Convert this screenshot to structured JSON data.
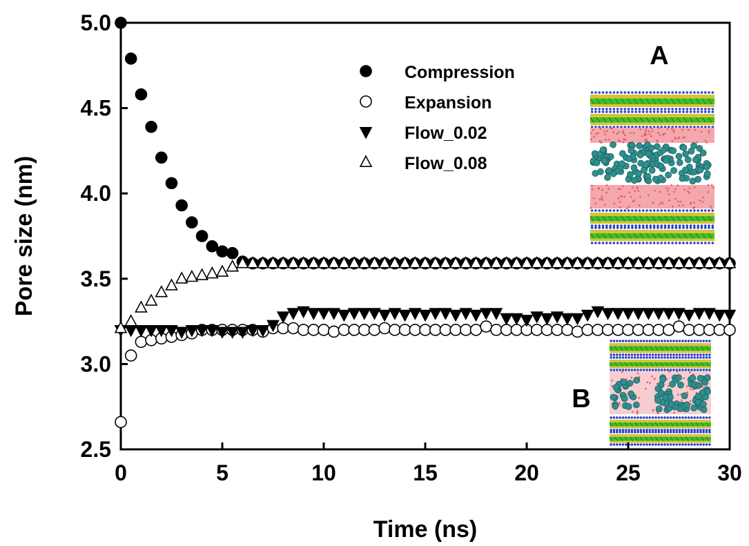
{
  "chart_data": {
    "type": "scatter",
    "xlabel": "Time (ns)",
    "ylabel": "Pore size (nm)",
    "xlim": [
      0,
      30
    ],
    "ylim": [
      2.5,
      5.0
    ],
    "xticks": [
      "0",
      "5",
      "10",
      "15",
      "20",
      "25",
      "30"
    ],
    "yticks": [
      "2.5",
      "3.0",
      "3.5",
      "4.0",
      "4.5",
      "5.0"
    ],
    "grid": false,
    "legend_position": "top-center",
    "annotations": [
      "A",
      "B"
    ],
    "series": [
      {
        "name": "Compression",
        "marker": "filled-circle",
        "x": [
          0,
          0.5,
          1,
          1.5,
          2,
          2.5,
          3,
          3.5,
          4,
          4.5,
          5,
          5.5,
          6,
          6.5,
          7,
          7.5,
          8,
          8.5,
          9,
          9.5,
          10,
          10.5,
          11,
          11.5,
          12,
          12.5,
          13,
          13.5,
          14,
          14.5,
          15,
          15.5,
          16,
          16.5,
          17,
          17.5,
          18,
          18.5,
          19,
          19.5,
          20,
          20.5,
          21,
          21.5,
          22,
          22.5,
          23,
          23.5,
          24,
          24.5,
          25,
          25.5,
          26,
          26.5,
          27,
          27.5,
          28,
          28.5,
          29,
          29.5,
          30
        ],
        "y": [
          5.0,
          4.79,
          4.58,
          4.39,
          4.21,
          4.06,
          3.93,
          3.83,
          3.75,
          3.69,
          3.66,
          3.65,
          3.6,
          3.59,
          3.59,
          3.59,
          3.59,
          3.59,
          3.59,
          3.59,
          3.59,
          3.59,
          3.59,
          3.59,
          3.59,
          3.59,
          3.59,
          3.59,
          3.59,
          3.59,
          3.59,
          3.59,
          3.59,
          3.59,
          3.59,
          3.59,
          3.59,
          3.59,
          3.59,
          3.59,
          3.59,
          3.59,
          3.59,
          3.59,
          3.59,
          3.59,
          3.59,
          3.59,
          3.59,
          3.59,
          3.59,
          3.59,
          3.59,
          3.59,
          3.59,
          3.59,
          3.59,
          3.59,
          3.59,
          3.59,
          3.59
        ]
      },
      {
        "name": "Expansion",
        "marker": "open-circle",
        "x": [
          0,
          0.5,
          1,
          1.5,
          2,
          2.5,
          3,
          3.5,
          4,
          4.5,
          5,
          5.5,
          6,
          6.5,
          7,
          7.5,
          8,
          8.5,
          9,
          9.5,
          10,
          10.5,
          11,
          11.5,
          12,
          12.5,
          13,
          13.5,
          14,
          14.5,
          15,
          15.5,
          16,
          16.5,
          17,
          17.5,
          18,
          18.5,
          19,
          19.5,
          20,
          20.5,
          21,
          21.5,
          22,
          22.5,
          23,
          23.5,
          24,
          24.5,
          25,
          25.5,
          26,
          26.5,
          27,
          27.5,
          28,
          28.5,
          29,
          29.5,
          30
        ],
        "y": [
          2.66,
          3.05,
          3.13,
          3.14,
          3.15,
          3.16,
          3.17,
          3.18,
          3.2,
          3.2,
          3.2,
          3.2,
          3.2,
          3.2,
          3.19,
          3.21,
          3.21,
          3.21,
          3.2,
          3.2,
          3.2,
          3.19,
          3.2,
          3.2,
          3.2,
          3.2,
          3.21,
          3.2,
          3.2,
          3.2,
          3.2,
          3.2,
          3.2,
          3.2,
          3.2,
          3.2,
          3.22,
          3.2,
          3.2,
          3.2,
          3.2,
          3.2,
          3.2,
          3.2,
          3.2,
          3.19,
          3.2,
          3.2,
          3.2,
          3.2,
          3.2,
          3.2,
          3.2,
          3.2,
          3.2,
          3.22,
          3.2,
          3.2,
          3.2,
          3.2,
          3.2
        ]
      },
      {
        "name": "Flow_0.02",
        "marker": "filled-triangle-down",
        "x": [
          0,
          0.5,
          1,
          1.5,
          2,
          2.5,
          3,
          3.5,
          4,
          4.5,
          5,
          5.5,
          6,
          6.5,
          7,
          7.5,
          8,
          8.5,
          9,
          9.5,
          10,
          10.5,
          11,
          11.5,
          12,
          12.5,
          13,
          13.5,
          14,
          14.5,
          15,
          15.5,
          16,
          16.5,
          17,
          17.5,
          18,
          18.5,
          19,
          19.5,
          20,
          20.5,
          21,
          21.5,
          22,
          22.5,
          23,
          23.5,
          24,
          24.5,
          25,
          25.5,
          26,
          26.5,
          27,
          27.5,
          28,
          28.5,
          29,
          29.5,
          30
        ],
        "y": [
          3.2,
          3.2,
          3.2,
          3.2,
          3.2,
          3.2,
          3.19,
          3.2,
          3.2,
          3.2,
          3.19,
          3.19,
          3.19,
          3.2,
          3.2,
          3.23,
          3.28,
          3.3,
          3.31,
          3.3,
          3.3,
          3.3,
          3.29,
          3.3,
          3.3,
          3.3,
          3.29,
          3.3,
          3.29,
          3.3,
          3.29,
          3.3,
          3.3,
          3.29,
          3.3,
          3.29,
          3.3,
          3.3,
          3.27,
          3.27,
          3.26,
          3.28,
          3.27,
          3.28,
          3.27,
          3.27,
          3.29,
          3.31,
          3.3,
          3.3,
          3.3,
          3.3,
          3.3,
          3.3,
          3.3,
          3.3,
          3.29,
          3.3,
          3.3,
          3.29,
          3.29
        ]
      },
      {
        "name": "Flow_0.08",
        "marker": "open-triangle-up",
        "x": [
          0,
          0.5,
          1,
          1.5,
          2,
          2.5,
          3,
          3.5,
          4,
          4.5,
          5,
          5.5,
          6,
          6.5,
          7,
          7.5,
          8,
          8.5,
          9,
          9.5,
          10,
          10.5,
          11,
          11.5,
          12,
          12.5,
          13,
          13.5,
          14,
          14.5,
          15,
          15.5,
          16,
          16.5,
          17,
          17.5,
          18,
          18.5,
          19,
          19.5,
          20,
          20.5,
          21,
          21.5,
          22,
          22.5,
          23,
          23.5,
          24,
          24.5,
          25,
          25.5,
          26,
          26.5,
          27,
          27.5,
          28,
          28.5,
          29,
          29.5,
          30
        ],
        "y": [
          3.21,
          3.25,
          3.33,
          3.37,
          3.42,
          3.46,
          3.5,
          3.51,
          3.52,
          3.53,
          3.54,
          3.57,
          3.59,
          3.59,
          3.59,
          3.59,
          3.59,
          3.59,
          3.59,
          3.59,
          3.59,
          3.59,
          3.59,
          3.59,
          3.59,
          3.59,
          3.59,
          3.59,
          3.59,
          3.59,
          3.59,
          3.59,
          3.59,
          3.59,
          3.59,
          3.59,
          3.59,
          3.59,
          3.59,
          3.59,
          3.59,
          3.59,
          3.59,
          3.59,
          3.59,
          3.59,
          3.59,
          3.59,
          3.59,
          3.59,
          3.59,
          3.59,
          3.59,
          3.59,
          3.59,
          3.59,
          3.59,
          3.59,
          3.59,
          3.59,
          3.59
        ]
      }
    ]
  },
  "colors": {
    "marker_fill": "#000000",
    "marker_open_fill": "#ffffff",
    "inset_gold": "#d9c23a",
    "inset_green": "#3fbf2a",
    "inset_blue": "#2a3fd0",
    "inset_pink": "#f4a7ad",
    "inset_pink_light": "#f8cdd0",
    "inset_teal": "#2f8f8f"
  }
}
